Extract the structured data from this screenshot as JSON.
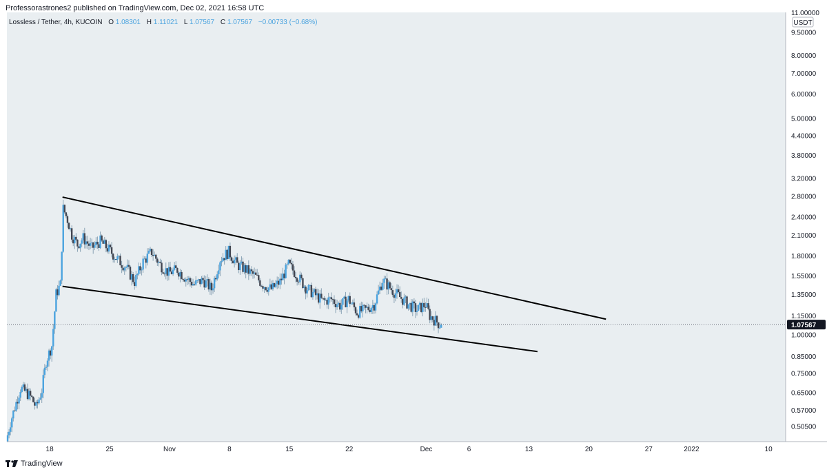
{
  "header": {
    "published_line": "Professorastrones2 published on TradingView.com, Dec 02, 2021 16:58 UTC"
  },
  "legend": {
    "symbol": "Lossless / Tether, 4h, KUCOIN",
    "o_label": "O",
    "o_value": "1.08301",
    "h_label": "H",
    "h_value": "1.11021",
    "l_label": "L",
    "l_value": "1.07567",
    "c_label": "C",
    "c_value": "1.07567",
    "change": "−0.00733 (−0.68%)"
  },
  "price_axis": {
    "currency": "USDT",
    "last_price_label": "1.07567"
  },
  "footer": {
    "brand": "TradingView"
  },
  "colors": {
    "background": "#e9eef1",
    "up": "#4aa3df",
    "down": "#434651",
    "wick": "#8aa3b5",
    "trendline": "#000000",
    "last_price_tag": "#131722"
  },
  "chart_data": {
    "type": "candlestick",
    "scale": "log",
    "symbol": "Lossless / Tether",
    "interval": "4h",
    "exchange": "KUCOIN",
    "ylim": [
      0.45,
      11.0
    ],
    "xlim": [
      "2021-10-13",
      "2022-01-12"
    ],
    "y_ticks": [
      "11.00000",
      "9.50000",
      "8.00000",
      "7.00000",
      "6.00000",
      "5.00000",
      "4.40000",
      "3.80000",
      "3.20000",
      "2.80000",
      "2.40000",
      "2.10000",
      "1.80000",
      "1.55000",
      "1.35000",
      "1.15000",
      "1.00000",
      "0.85000",
      "0.75000",
      "0.65000",
      "0.57000",
      "0.50500"
    ],
    "x_ticks": [
      {
        "date": "2021-10-18",
        "label": "18"
      },
      {
        "date": "2021-10-25",
        "label": "25"
      },
      {
        "date": "2021-11-01",
        "label": "Nov"
      },
      {
        "date": "2021-11-08",
        "label": "8"
      },
      {
        "date": "2021-11-15",
        "label": "15"
      },
      {
        "date": "2021-11-22",
        "label": "22"
      },
      {
        "date": "2021-12-01",
        "label": "Dec"
      },
      {
        "date": "2021-12-06",
        "label": "6"
      },
      {
        "date": "2021-12-13",
        "label": "13"
      },
      {
        "date": "2021-12-20",
        "label": "20"
      },
      {
        "date": "2021-12-27",
        "label": "27"
      },
      {
        "date": "2022-01-01",
        "label": "2022"
      },
      {
        "date": "2022-01-10",
        "label": "10"
      }
    ],
    "price_path": [
      {
        "date": "2021-10-13T00:00",
        "price": 0.45
      },
      {
        "date": "2021-10-13T12:00",
        "price": 0.52
      },
      {
        "date": "2021-10-14T00:00",
        "price": 0.58
      },
      {
        "date": "2021-10-14T16:00",
        "price": 0.67
      },
      {
        "date": "2021-10-15T08:00",
        "price": 0.65
      },
      {
        "date": "2021-10-16T00:00",
        "price": 0.62
      },
      {
        "date": "2021-10-16T12:00",
        "price": 0.58
      },
      {
        "date": "2021-10-17T04:00",
        "price": 0.66
      },
      {
        "date": "2021-10-17T16:00",
        "price": 0.82
      },
      {
        "date": "2021-10-18T08:00",
        "price": 0.92
      },
      {
        "date": "2021-10-18T20:00",
        "price": 1.35
      },
      {
        "date": "2021-10-19T08:00",
        "price": 1.45
      },
      {
        "date": "2021-10-19T16:00",
        "price": 2.55
      },
      {
        "date": "2021-10-20T04:00",
        "price": 2.35
      },
      {
        "date": "2021-10-20T16:00",
        "price": 2.1
      },
      {
        "date": "2021-10-21T08:00",
        "price": 1.95
      },
      {
        "date": "2021-10-22T00:00",
        "price": 2.05
      },
      {
        "date": "2021-10-23T00:00",
        "price": 1.9
      },
      {
        "date": "2021-10-24T00:00",
        "price": 2.0
      },
      {
        "date": "2021-10-25T00:00",
        "price": 1.88
      },
      {
        "date": "2021-10-26T00:00",
        "price": 1.75
      },
      {
        "date": "2021-10-27T00:00",
        "price": 1.65
      },
      {
        "date": "2021-10-28T00:00",
        "price": 1.48
      },
      {
        "date": "2021-10-29T00:00",
        "price": 1.72
      },
      {
        "date": "2021-10-30T00:00",
        "price": 1.85
      },
      {
        "date": "2021-10-31T00:00",
        "price": 1.68
      },
      {
        "date": "2021-11-01T00:00",
        "price": 1.58
      },
      {
        "date": "2021-11-02T00:00",
        "price": 1.62
      },
      {
        "date": "2021-11-03T00:00",
        "price": 1.52
      },
      {
        "date": "2021-11-04T00:00",
        "price": 1.45
      },
      {
        "date": "2021-11-05T00:00",
        "price": 1.5
      },
      {
        "date": "2021-11-06T00:00",
        "price": 1.4
      },
      {
        "date": "2021-11-07T00:00",
        "price": 1.75
      },
      {
        "date": "2021-11-08T00:00",
        "price": 1.85
      },
      {
        "date": "2021-11-09T00:00",
        "price": 1.68
      },
      {
        "date": "2021-11-10T00:00",
        "price": 1.62
      },
      {
        "date": "2021-11-11T00:00",
        "price": 1.55
      },
      {
        "date": "2021-11-12T00:00",
        "price": 1.45
      },
      {
        "date": "2021-11-13T00:00",
        "price": 1.4
      },
      {
        "date": "2021-11-14T00:00",
        "price": 1.48
      },
      {
        "date": "2021-11-15T00:00",
        "price": 1.68
      },
      {
        "date": "2021-11-16T00:00",
        "price": 1.55
      },
      {
        "date": "2021-11-17T00:00",
        "price": 1.42
      },
      {
        "date": "2021-11-18T00:00",
        "price": 1.35
      },
      {
        "date": "2021-11-19T00:00",
        "price": 1.28
      },
      {
        "date": "2021-11-20T00:00",
        "price": 1.3
      },
      {
        "date": "2021-11-21T00:00",
        "price": 1.24
      },
      {
        "date": "2021-11-22T00:00",
        "price": 1.3
      },
      {
        "date": "2021-11-23T00:00",
        "price": 1.18
      },
      {
        "date": "2021-11-24T00:00",
        "price": 1.2
      },
      {
        "date": "2021-11-25T00:00",
        "price": 1.25
      },
      {
        "date": "2021-11-26T00:00",
        "price": 1.5
      },
      {
        "date": "2021-11-27T00:00",
        "price": 1.4
      },
      {
        "date": "2021-11-28T00:00",
        "price": 1.32
      },
      {
        "date": "2021-11-29T00:00",
        "price": 1.25
      },
      {
        "date": "2021-11-30T00:00",
        "price": 1.2
      },
      {
        "date": "2021-12-01T00:00",
        "price": 1.25
      },
      {
        "date": "2021-12-01T12:00",
        "price": 1.15
      },
      {
        "date": "2021-12-02T16:00",
        "price": 1.07567
      }
    ],
    "last_price": 1.07567,
    "open": 1.08301,
    "high": 1.11021,
    "low": 1.07567,
    "close": 1.07567,
    "trendlines": [
      {
        "name": "",
        "start": {
          "date": "2021-10-19T12:00",
          "price": 2.78
        },
        "end": {
          "date": "2021-12-22",
          "price": 1.12
        }
      },
      {
        "name": "",
        "start": {
          "date": "2021-10-19T12:00",
          "price": 1.43
        },
        "end": {
          "date": "2021-12-14",
          "price": 0.88
        }
      }
    ]
  }
}
